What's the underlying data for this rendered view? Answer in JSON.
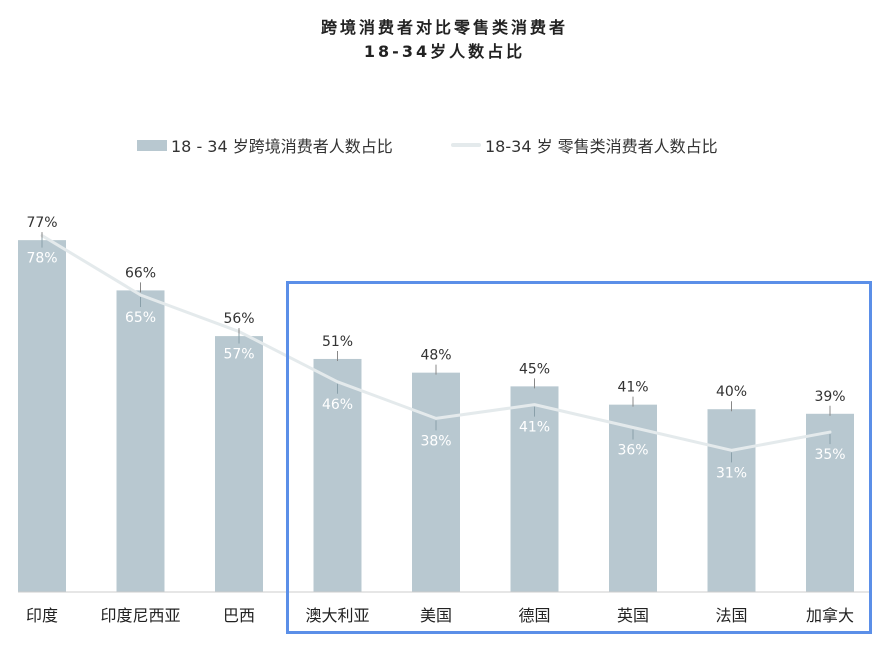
{
  "chart_data": {
    "type": "bar",
    "title_line1": "跨境消费者对比零售类消费者",
    "title_line2": "18-34岁人数占比",
    "categories": [
      "印度",
      "印度尼西亚",
      "巴西",
      "澳大利亚",
      "美国",
      "德国",
      "英国",
      "法国",
      "加拿大"
    ],
    "series": [
      {
        "name": "18 - 34 岁跨境消费者人数占比",
        "type": "bar",
        "color": "#b8c8d0",
        "values": [
          77,
          66,
          56,
          51,
          48,
          45,
          41,
          40,
          39
        ],
        "labels": [
          "77%",
          "66%",
          "56%",
          "51%",
          "48%",
          "45%",
          "41%",
          "40%",
          "39%"
        ]
      },
      {
        "name": "18-34 岁 零售类消费者人数占比",
        "type": "line",
        "color": "#e4eaec",
        "values": [
          78,
          65,
          57,
          46,
          38,
          41,
          36,
          31,
          35
        ],
        "labels": [
          "78%",
          "65%",
          "57%",
          "46%",
          "38%",
          "41%",
          "36%",
          "31%",
          "35%"
        ]
      }
    ],
    "ylim": [
      0,
      79
    ],
    "grid": false,
    "legend_position": "top-center",
    "highlight_color": "#5b8fe8"
  }
}
